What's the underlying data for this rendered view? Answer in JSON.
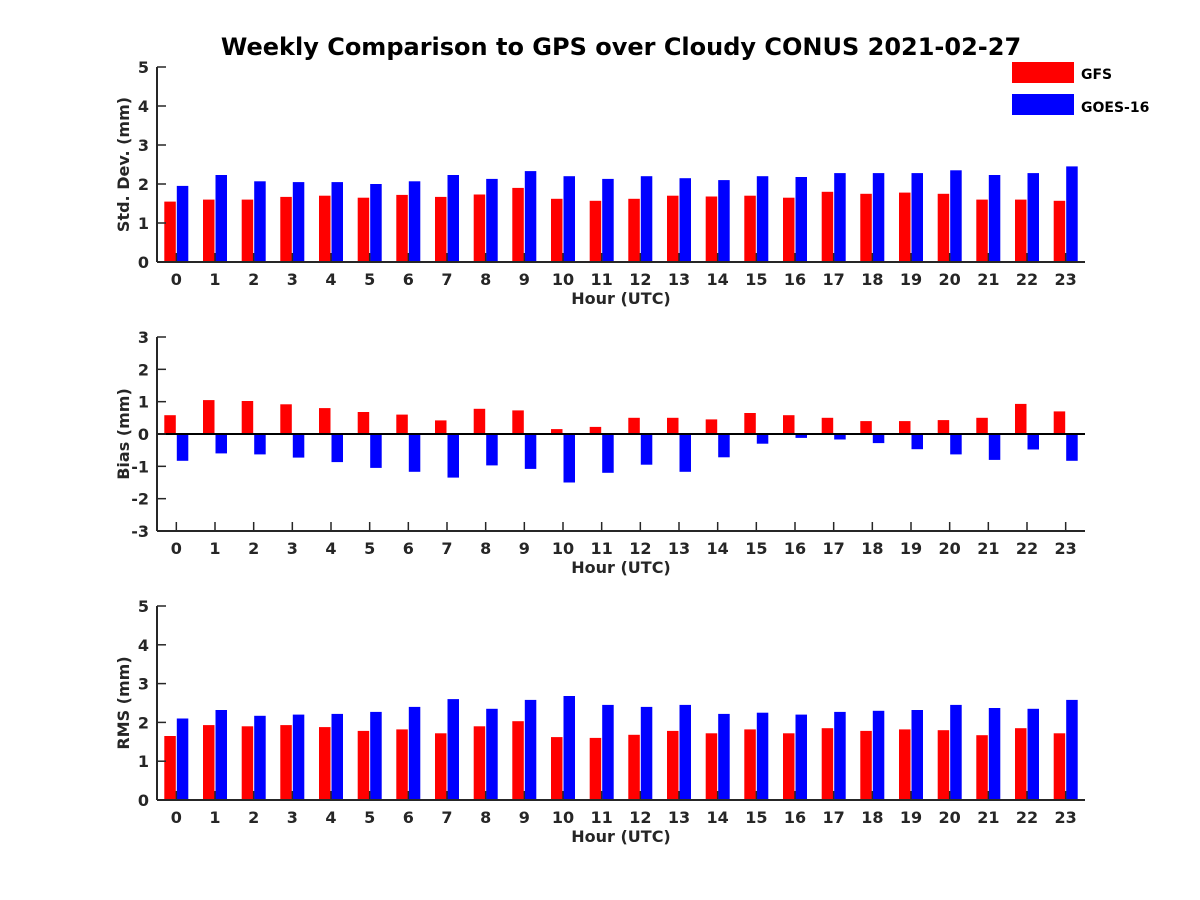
{
  "chart_data": {
    "type": "bar",
    "title": "Weekly Comparison to GPS over Cloudy CONUS 2021-02-27",
    "categories": [
      "0",
      "1",
      "2",
      "3",
      "4",
      "5",
      "6",
      "7",
      "8",
      "9",
      "10",
      "11",
      "12",
      "13",
      "14",
      "15",
      "16",
      "17",
      "18",
      "19",
      "20",
      "21",
      "22",
      "23"
    ],
    "legend": {
      "placement": "top-right",
      "entries": [
        {
          "name": "GFS",
          "color": "#ff0000"
        },
        {
          "name": "GOES-16",
          "color": "#0000ff"
        }
      ]
    },
    "panels": [
      {
        "ylabel": "Std. Dev. (mm)",
        "xlabel": "Hour (UTC)",
        "ylim": [
          0,
          5
        ],
        "yticks": [
          0,
          1,
          2,
          3,
          4,
          5
        ],
        "series": [
          {
            "name": "GFS",
            "color": "#ff0000",
            "values": [
              1.55,
              1.6,
              1.6,
              1.67,
              1.7,
              1.65,
              1.72,
              1.67,
              1.73,
              1.9,
              1.62,
              1.57,
              1.62,
              1.7,
              1.68,
              1.7,
              1.65,
              1.8,
              1.75,
              1.78,
              1.75,
              1.6,
              1.6,
              1.57
            ]
          },
          {
            "name": "GOES-16",
            "color": "#0000ff",
            "values": [
              1.95,
              2.23,
              2.07,
              2.05,
              2.05,
              2.0,
              2.07,
              2.23,
              2.13,
              2.33,
              2.2,
              2.13,
              2.2,
              2.15,
              2.1,
              2.2,
              2.18,
              2.28,
              2.28,
              2.28,
              2.35,
              2.23,
              2.28,
              2.45
            ]
          }
        ]
      },
      {
        "ylabel": "Bias (mm)",
        "xlabel": "Hour (UTC)",
        "ylim": [
          -3,
          3
        ],
        "yticks": [
          -3,
          -2,
          -1,
          0,
          1,
          2,
          3
        ],
        "series": [
          {
            "name": "GFS",
            "color": "#ff0000",
            "values": [
              0.58,
              1.05,
              1.02,
              0.92,
              0.8,
              0.68,
              0.6,
              0.42,
              0.78,
              0.73,
              0.15,
              0.22,
              0.5,
              0.5,
              0.45,
              0.65,
              0.58,
              0.5,
              0.4,
              0.4,
              0.43,
              0.5,
              0.93,
              0.7
            ]
          },
          {
            "name": "GOES-16",
            "color": "#0000ff",
            "values": [
              -0.83,
              -0.6,
              -0.63,
              -0.73,
              -0.87,
              -1.05,
              -1.17,
              -1.35,
              -0.97,
              -1.08,
              -1.5,
              -1.2,
              -0.95,
              -1.17,
              -0.72,
              -0.3,
              -0.12,
              -0.17,
              -0.28,
              -0.47,
              -0.63,
              -0.8,
              -0.48,
              -0.83
            ]
          }
        ]
      },
      {
        "ylabel": "RMS (mm)",
        "xlabel": "Hour (UTC)",
        "ylim": [
          0,
          5
        ],
        "yticks": [
          0,
          1,
          2,
          3,
          4,
          5
        ],
        "series": [
          {
            "name": "GFS",
            "color": "#ff0000",
            "values": [
              1.65,
              1.93,
              1.9,
              1.93,
              1.88,
              1.78,
              1.82,
              1.72,
              1.9,
              2.03,
              1.62,
              1.6,
              1.68,
              1.78,
              1.72,
              1.82,
              1.72,
              1.85,
              1.78,
              1.82,
              1.8,
              1.67,
              1.85,
              1.72
            ]
          },
          {
            "name": "GOES-16",
            "color": "#0000ff",
            "values": [
              2.1,
              2.32,
              2.17,
              2.2,
              2.22,
              2.27,
              2.4,
              2.6,
              2.35,
              2.58,
              2.68,
              2.45,
              2.4,
              2.45,
              2.22,
              2.25,
              2.2,
              2.27,
              2.3,
              2.32,
              2.45,
              2.37,
              2.35,
              2.58
            ]
          }
        ]
      }
    ]
  }
}
